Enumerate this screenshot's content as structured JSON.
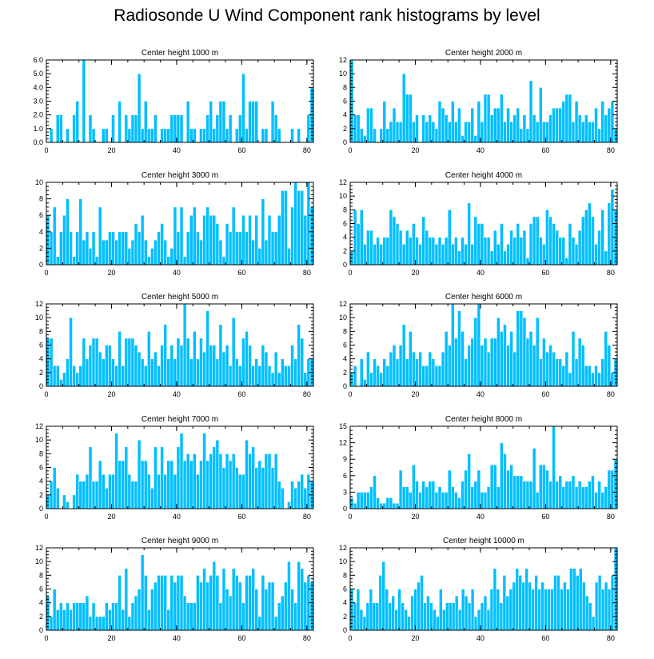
{
  "figure": {
    "title": "Radiosonde U Wind Component rank histograms by level"
  },
  "colors": {
    "bar": "#00BFFF",
    "bar_edge": "#ffffff",
    "axis": "#000000"
  },
  "chart_data": [
    {
      "type": "bar",
      "title": "Center height 1000 m",
      "xlim": [
        0,
        82
      ],
      "ylim": [
        0,
        6
      ],
      "yticks": [
        "0.0",
        "1.0",
        "2.0",
        "3.0",
        "4.0",
        "5.0",
        "6.0"
      ],
      "xticks": [
        0,
        20,
        40,
        60,
        80
      ],
      "values": [
        0,
        1,
        0,
        2,
        2,
        0,
        1,
        0,
        2,
        3,
        0,
        6,
        0,
        2,
        1,
        0,
        0,
        1,
        1,
        0,
        2,
        0,
        3,
        0,
        2,
        1,
        2,
        2,
        5,
        1,
        3,
        1,
        1,
        2,
        0,
        1,
        1,
        1,
        2,
        2,
        2,
        2,
        0,
        3,
        1,
        1,
        0,
        1,
        1,
        2,
        3,
        1,
        2,
        3,
        3,
        1,
        2,
        0,
        1,
        2,
        5,
        1,
        3,
        3,
        3,
        0,
        1,
        1,
        0,
        3,
        2,
        1,
        0,
        0,
        0,
        1,
        0,
        1,
        0,
        0,
        2,
        4
      ]
    },
    {
      "type": "bar",
      "title": "Center height 2000 m",
      "xlim": [
        0,
        82
      ],
      "ylim": [
        0,
        12
      ],
      "yticks": [
        "0",
        "2",
        "4",
        "6",
        "8",
        "10",
        "12"
      ],
      "xticks": [
        0,
        20,
        40,
        60,
        80
      ],
      "values": [
        12,
        4,
        4,
        2,
        1,
        5,
        5,
        2,
        0,
        2,
        6,
        2,
        3,
        5,
        3,
        3,
        10,
        7,
        7,
        3,
        4,
        0,
        4,
        3,
        4,
        3,
        2,
        6,
        5,
        4,
        3,
        6,
        3,
        5,
        1,
        3,
        3,
        5,
        1,
        6,
        3,
        7,
        7,
        4,
        5,
        5,
        7,
        3,
        5,
        3,
        4,
        5,
        2,
        4,
        2,
        9,
        4,
        3,
        8,
        3,
        3,
        4,
        5,
        5,
        5,
        6,
        7,
        7,
        3,
        6,
        4,
        3,
        4,
        3,
        3,
        5,
        2,
        6,
        4,
        5,
        6,
        2
      ]
    },
    {
      "type": "bar",
      "title": "Center height 3000 m",
      "xlim": [
        0,
        82
      ],
      "ylim": [
        0,
        10
      ],
      "yticks": [
        "0",
        "2",
        "4",
        "6",
        "8",
        "10"
      ],
      "xticks": [
        0,
        20,
        40,
        60,
        80
      ],
      "values": [
        6,
        4,
        7,
        1,
        4,
        6,
        8,
        4,
        1,
        4,
        8,
        3,
        4,
        2,
        4,
        1,
        7,
        3,
        3,
        4,
        4,
        3,
        4,
        4,
        4,
        2,
        3,
        5,
        4,
        6,
        3,
        1,
        2,
        3,
        4,
        5,
        3,
        1,
        2,
        7,
        4,
        7,
        1,
        4,
        6,
        7,
        4,
        3,
        6,
        7,
        6,
        6,
        5,
        3,
        1,
        5,
        4,
        7,
        4,
        4,
        6,
        4,
        6,
        3,
        6,
        2,
        8,
        3,
        6,
        4,
        4,
        6,
        9,
        9,
        2,
        7,
        10,
        9,
        9,
        6,
        10,
        7
      ]
    },
    {
      "type": "bar",
      "title": "Center height 4000 m",
      "xlim": [
        0,
        82
      ],
      "ylim": [
        0,
        12
      ],
      "yticks": [
        "0",
        "2",
        "4",
        "6",
        "8",
        "10",
        "12"
      ],
      "xticks": [
        0,
        20,
        40,
        60,
        80
      ],
      "values": [
        2,
        8,
        6,
        8,
        3,
        5,
        5,
        3,
        4,
        3,
        4,
        4,
        8,
        7,
        6,
        5,
        3,
        5,
        4,
        6,
        4,
        3,
        7,
        5,
        4,
        4,
        3,
        4,
        3,
        4,
        8,
        3,
        4,
        2,
        4,
        3,
        9,
        3,
        7,
        6,
        6,
        4,
        4,
        2,
        5,
        3,
        6,
        2,
        3,
        5,
        4,
        6,
        4,
        5,
        1,
        6,
        7,
        7,
        4,
        3,
        8,
        7,
        6,
        5,
        4,
        4,
        1,
        6,
        4,
        3,
        5,
        7,
        8,
        9,
        7,
        3,
        5,
        8,
        2,
        9,
        11,
        8
      ]
    },
    {
      "type": "bar",
      "title": "Center height 5000 m",
      "xlim": [
        0,
        82
      ],
      "ylim": [
        0,
        12
      ],
      "yticks": [
        "0",
        "2",
        "4",
        "6",
        "8",
        "10",
        "12"
      ],
      "xticks": [
        0,
        20,
        40,
        60,
        80
      ],
      "values": [
        7,
        7,
        3,
        3,
        1,
        2,
        4,
        10,
        3,
        2,
        3,
        7,
        4,
        6,
        7,
        7,
        5,
        4,
        6,
        6,
        4,
        3,
        8,
        3,
        7,
        7,
        7,
        6,
        5,
        4,
        3,
        8,
        4,
        5,
        3,
        6,
        9,
        4,
        6,
        4,
        7,
        6,
        12,
        7,
        4,
        8,
        4,
        7,
        5,
        11,
        6,
        6,
        4,
        9,
        5,
        6,
        3,
        10,
        4,
        3,
        7,
        8,
        6,
        3,
        4,
        3,
        6,
        5,
        3,
        2,
        5,
        2,
        4,
        3,
        3,
        6,
        4,
        9,
        7,
        2,
        4,
        4
      ]
    },
    {
      "type": "bar",
      "title": "Center height 6000 m",
      "xlim": [
        0,
        82
      ],
      "ylim": [
        0,
        12
      ],
      "yticks": [
        "0",
        "2",
        "4",
        "6",
        "8",
        "10",
        "12"
      ],
      "xticks": [
        0,
        20,
        40,
        60,
        80
      ],
      "values": [
        2,
        3,
        0,
        4,
        1,
        5,
        2,
        4,
        3,
        2,
        4,
        3,
        5,
        6,
        4,
        6,
        9,
        4,
        8,
        5,
        4,
        5,
        3,
        3,
        5,
        4,
        3,
        3,
        5,
        8,
        6,
        12,
        7,
        11,
        8,
        4,
        6,
        7,
        10,
        12,
        6,
        7,
        5,
        7,
        7,
        10,
        8,
        9,
        6,
        8,
        5,
        11,
        11,
        10,
        7,
        8,
        6,
        10,
        4,
        7,
        5,
        6,
        5,
        4,
        4,
        3,
        5,
        2,
        8,
        4,
        7,
        6,
        3,
        3,
        2,
        3,
        2,
        4,
        8,
        6,
        2,
        4
      ]
    },
    {
      "type": "bar",
      "title": "Center height 7000 m",
      "xlim": [
        0,
        82
      ],
      "ylim": [
        0,
        12
      ],
      "yticks": [
        "0",
        "2",
        "4",
        "6",
        "8",
        "10",
        "12"
      ],
      "xticks": [
        0,
        20,
        40,
        60,
        80
      ],
      "values": [
        2,
        4,
        6,
        3,
        0,
        2,
        1,
        0,
        2,
        5,
        4,
        4,
        5,
        9,
        4,
        4,
        7,
        5,
        3,
        5,
        5,
        11,
        7,
        7,
        9,
        5,
        4,
        4,
        10,
        7,
        7,
        5,
        3,
        9,
        5,
        9,
        5,
        7,
        7,
        5,
        9,
        11,
        7,
        8,
        7,
        8,
        5,
        7,
        11,
        7,
        8,
        9,
        10,
        8,
        6,
        8,
        7,
        8,
        6,
        5,
        5,
        10,
        8,
        9,
        6,
        7,
        6,
        8,
        8,
        6,
        8,
        4,
        3,
        0,
        1,
        4,
        3,
        4,
        5,
        3,
        5,
        4
      ]
    },
    {
      "type": "bar",
      "title": "Center height 8000 m",
      "xlim": [
        0,
        82
      ],
      "ylim": [
        0,
        15
      ],
      "yticks": [
        "0",
        "3",
        "6",
        "9",
        "12",
        "15"
      ],
      "xticks": [
        0,
        20,
        40,
        60,
        80
      ],
      "values": [
        2,
        1,
        3,
        3,
        3,
        3,
        4,
        6,
        2,
        1,
        1,
        2,
        2,
        1,
        1,
        7,
        4,
        4,
        3,
        8,
        5,
        3,
        5,
        4,
        5,
        5,
        3,
        4,
        3,
        3,
        7,
        4,
        3,
        2,
        5,
        7,
        10,
        4,
        5,
        7,
        3,
        3,
        4,
        8,
        8,
        4,
        12,
        10,
        7,
        8,
        6,
        6,
        6,
        5,
        5,
        5,
        11,
        3,
        8,
        8,
        7,
        5,
        15,
        5,
        6,
        4,
        5,
        5,
        6,
        4,
        5,
        4,
        4,
        5,
        6,
        3,
        5,
        3,
        4,
        7,
        7,
        9
      ]
    },
    {
      "type": "bar",
      "title": "Center height 9000 m",
      "xlim": [
        0,
        82
      ],
      "ylim": [
        0,
        12
      ],
      "yticks": [
        "0",
        "2",
        "4",
        "6",
        "8",
        "10",
        "12"
      ],
      "xticks": [
        0,
        20,
        40,
        60,
        80
      ],
      "values": [
        5,
        2,
        6,
        3,
        4,
        3,
        4,
        3,
        4,
        4,
        4,
        4,
        5,
        2,
        4,
        2,
        2,
        2,
        4,
        3,
        4,
        4,
        8,
        3,
        9,
        2,
        4,
        5,
        6,
        11,
        8,
        3,
        6,
        7,
        8,
        8,
        8,
        3,
        8,
        7,
        8,
        8,
        5,
        4,
        4,
        4,
        8,
        7,
        9,
        7,
        8,
        10,
        8,
        4,
        9,
        6,
        5,
        9,
        8,
        7,
        4,
        8,
        8,
        9,
        6,
        2,
        8,
        6,
        7,
        7,
        2,
        4,
        5,
        7,
        10,
        6,
        4,
        10,
        9,
        7,
        8,
        7
      ]
    },
    {
      "type": "bar",
      "title": "Center height 10000 m",
      "xlim": [
        0,
        82
      ],
      "ylim": [
        0,
        12
      ],
      "yticks": [
        "0",
        "2",
        "4",
        "6",
        "8",
        "10",
        "12"
      ],
      "xticks": [
        0,
        20,
        40,
        60,
        80
      ],
      "values": [
        6,
        4,
        6,
        3,
        2,
        4,
        6,
        4,
        4,
        8,
        10,
        6,
        4,
        5,
        3,
        6,
        4,
        3,
        2,
        5,
        6,
        7,
        8,
        4,
        5,
        4,
        3,
        2,
        6,
        3,
        4,
        4,
        4,
        5,
        3,
        6,
        5,
        4,
        6,
        2,
        3,
        4,
        5,
        3,
        6,
        9,
        6,
        4,
        8,
        5,
        6,
        7,
        9,
        8,
        7,
        9,
        7,
        6,
        8,
        6,
        7,
        6,
        6,
        6,
        8,
        8,
        6,
        7,
        6,
        9,
        9,
        8,
        9,
        7,
        5,
        4,
        2,
        7,
        8,
        6,
        7,
        6,
        8,
        12
      ]
    }
  ]
}
